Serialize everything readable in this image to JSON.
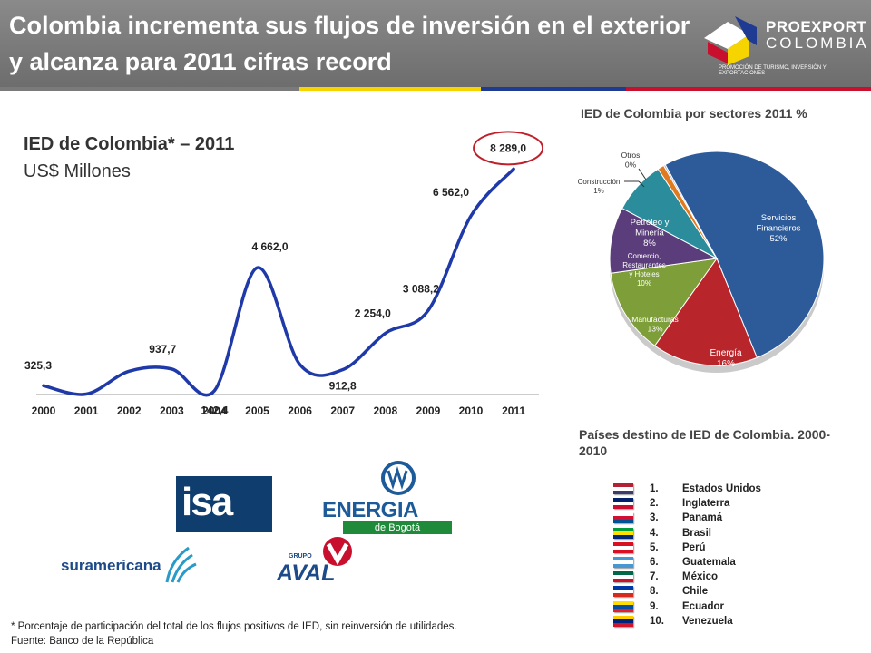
{
  "header": {
    "title": "Colombia incrementa sus flujos de inversión en el exterior y alcanza para 2011 cifras record",
    "logo_name": "PROEXPORT",
    "logo_sub": "COLOMBIA",
    "logo_tagline": "PROMOCIÓN DE TURISMO, INVERSIÓN Y EXPORTACIONES"
  },
  "line_section": {
    "title": "IED de Colombia* – 2011",
    "unit": "US$ Millones"
  },
  "pie_section": {
    "title": "IED de Colombia por sectores 2011 %"
  },
  "countries_section": {
    "title": "Países destino de IED de Colombia. 2000-2010",
    "items": [
      {
        "num": "1.",
        "name": "Estados Unidos",
        "flag": [
          "#b22234",
          "#ffffff",
          "#3c3b6e"
        ]
      },
      {
        "num": "2.",
        "name": "Inglaterra",
        "flag": [
          "#012169",
          "#ffffff",
          "#c8102e"
        ]
      },
      {
        "num": "3.",
        "name": "Panamá",
        "flag": [
          "#ffffff",
          "#d21034",
          "#005293"
        ]
      },
      {
        "num": "4.",
        "name": "Brasil",
        "flag": [
          "#009c3b",
          "#ffdf00",
          "#002776"
        ]
      },
      {
        "num": "5.",
        "name": "Perú",
        "flag": [
          "#d91023",
          "#ffffff",
          "#d91023"
        ]
      },
      {
        "num": "6.",
        "name": "Guatemala",
        "flag": [
          "#4997d0",
          "#ffffff",
          "#4997d0"
        ]
      },
      {
        "num": "7.",
        "name": "México",
        "flag": [
          "#006847",
          "#ffffff",
          "#ce1126"
        ]
      },
      {
        "num": "8.",
        "name": "Chile",
        "flag": [
          "#0039a6",
          "#ffffff",
          "#d52b1e"
        ]
      },
      {
        "num": "9.",
        "name": "Ecuador",
        "flag": [
          "#ffdd00",
          "#034ea2",
          "#ed1c24"
        ]
      },
      {
        "num": "10.",
        "name": "Venezuela",
        "flag": [
          "#ffcc00",
          "#00247d",
          "#cf142b"
        ]
      }
    ]
  },
  "companies": {
    "isa": "isa",
    "energia": "ENERGIA",
    "energia_sub": "de Bogotá",
    "suramericana": "suramericana",
    "aval": "AVAL",
    "aval_grupo": "GRUPO"
  },
  "footnote": {
    "line1": "* Porcentaje de participación del total de los flujos positivos de IED, sin reinversión de utilidades.",
    "line2": "Fuente: Banco de la República"
  },
  "colors": {
    "header_bg": "#7a7a7a",
    "line": "#1f3aa8",
    "highlight_circle": "#c0202a",
    "flag_stripe": [
      "#f5d400",
      "#1f3a93",
      "#c8102e"
    ]
  },
  "chart_data": [
    {
      "type": "line",
      "title": "IED de Colombia* – 2011",
      "subtitle": "US$ Millones",
      "categories": [
        "2000",
        "2001",
        "2002",
        "2003",
        "2004",
        "2005",
        "2006",
        "2007",
        "2008",
        "2009",
        "2010",
        "2011"
      ],
      "values": [
        325.3,
        16.0,
        857.0,
        937.7,
        142.4,
        4662.0,
        1098.0,
        912.8,
        2254.0,
        3088.2,
        6562.0,
        8289.0
      ],
      "data_labels": [
        "325,3",
        "",
        "",
        "937,7",
        "142,4",
        "4 662,0",
        "",
        "912,8",
        "2 254,0",
        "3 088,2",
        "6 562,0",
        "8 289,0"
      ],
      "highlight_label": "8 289,0",
      "ylim": [
        0,
        9000
      ],
      "grid": false,
      "legend": "none",
      "smooth": true
    },
    {
      "type": "pie",
      "title": "IED de Colombia por sectores 2011 %",
      "slices": [
        {
          "label": "Servicios Financieros",
          "value": 52,
          "pct_label": "52%",
          "color": "#2d5b9a"
        },
        {
          "label": "Energía",
          "value": 16,
          "pct_label": "16%",
          "color": "#b8262b"
        },
        {
          "label": "Manufacturas",
          "value": 13,
          "pct_label": "13%",
          "color": "#7e9e3a"
        },
        {
          "label": "Comercio, Restaurantes y Hoteles",
          "value": 10,
          "pct_label": "10%",
          "color": "#5a3d7a"
        },
        {
          "label": "Petróleo y Minería",
          "value": 8,
          "pct_label": "8%",
          "color": "#2b8c9c"
        },
        {
          "label": "Construcción",
          "value": 1,
          "pct_label": "1%",
          "color": "#e07a1f"
        },
        {
          "label": "Otros",
          "value": 0,
          "pct_label": "0%",
          "color": "#9bb0d4"
        }
      ]
    }
  ]
}
